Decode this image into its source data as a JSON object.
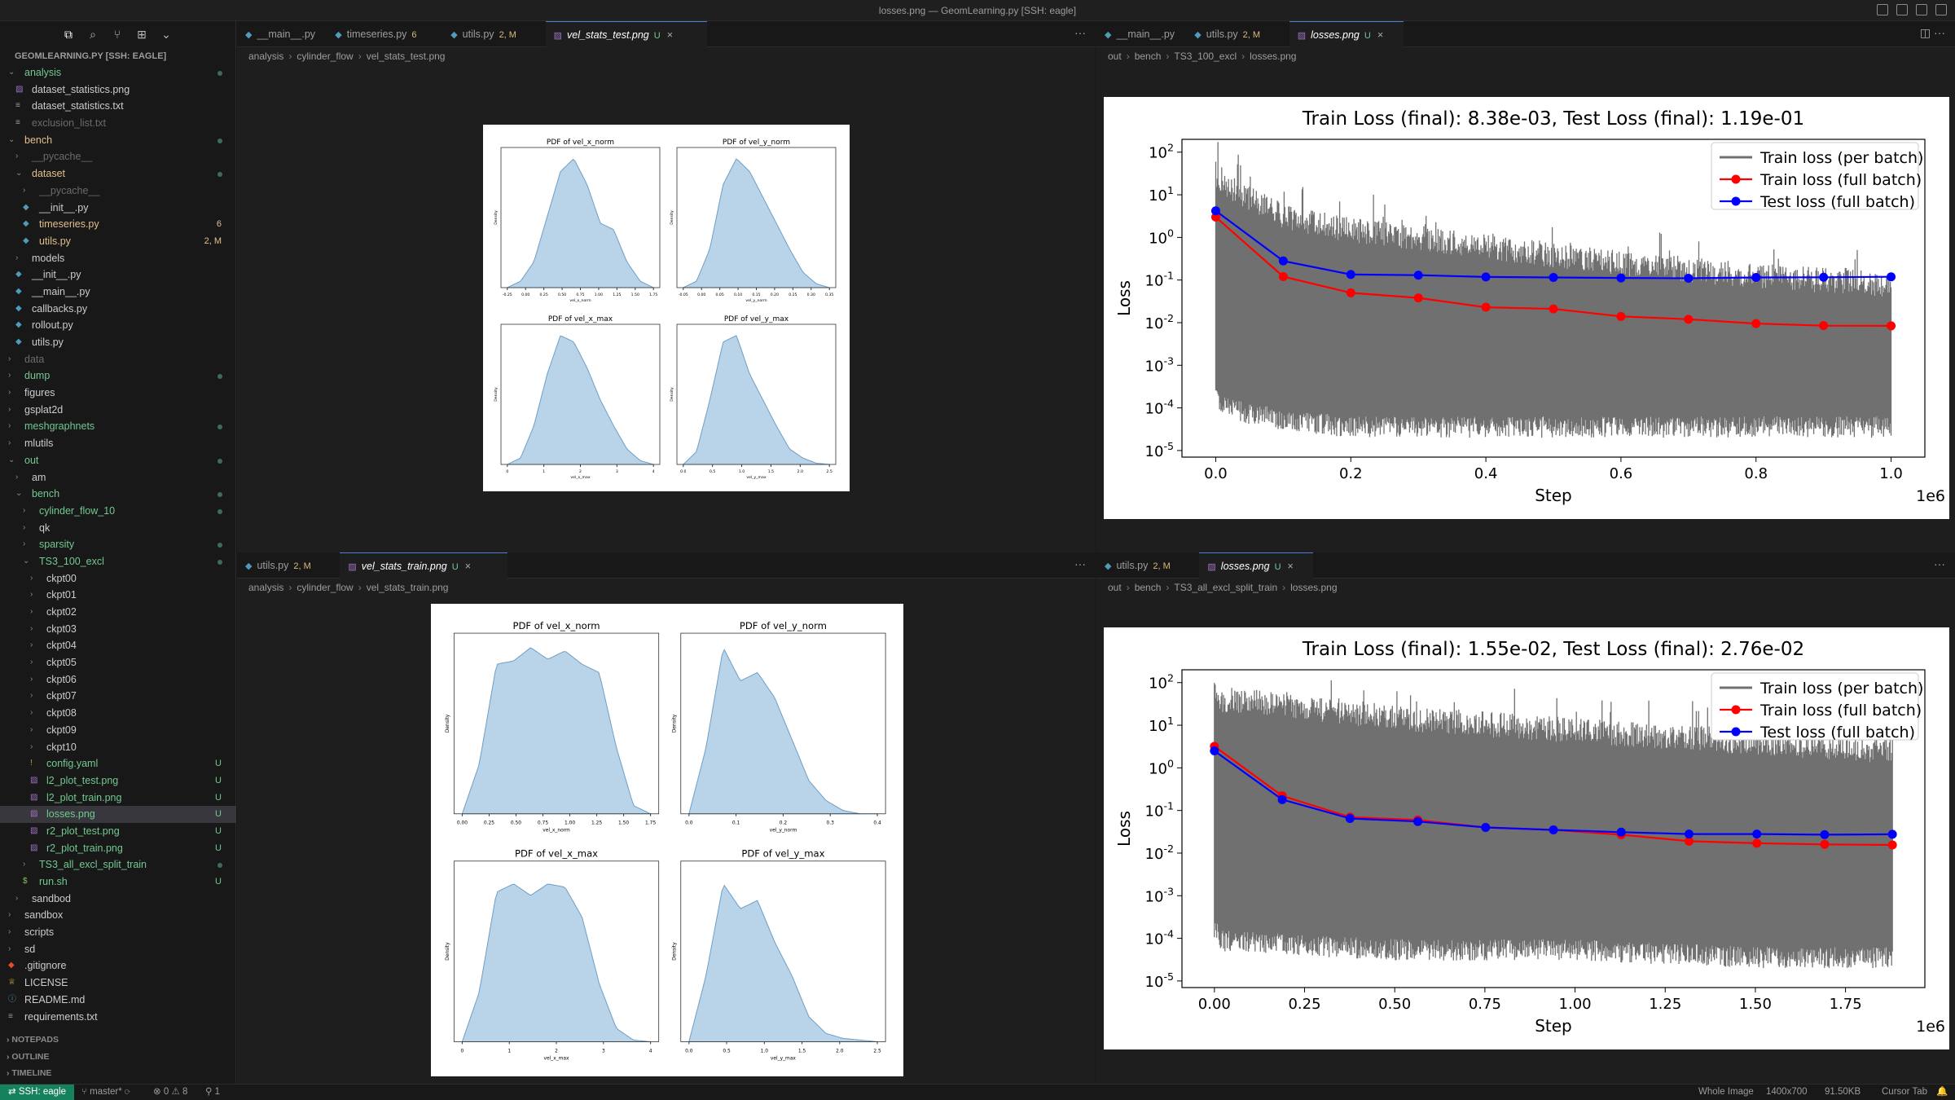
{
  "window": {
    "title": "losses.png — GeomLearning.py [SSH: eagle]"
  },
  "sidebar": {
    "header": "GEOMLEARNING.PY [SSH: EAGLE]",
    "items": [
      {
        "label": "analysis",
        "depth": 0,
        "type": "folder",
        "open": true,
        "color": "#73c991",
        "dot": true
      },
      {
        "label": "dataset_statistics.png",
        "depth": 1,
        "type": "image",
        "color": "#cccccc"
      },
      {
        "label": "dataset_statistics.txt",
        "depth": 1,
        "type": "text",
        "color": "#cccccc"
      },
      {
        "label": "exclusion_list.txt",
        "depth": 1,
        "type": "text",
        "color": "#6b6b6b"
      },
      {
        "label": "bench",
        "depth": 0,
        "type": "folder",
        "open": true,
        "color": "#e2c08d",
        "dot": true
      },
      {
        "label": "__pycache__",
        "depth": 1,
        "type": "folder",
        "color": "#6b6b6b"
      },
      {
        "label": "dataset",
        "depth": 1,
        "type": "folder",
        "open": true,
        "color": "#e2c08d",
        "dot": true
      },
      {
        "label": "__pycache__",
        "depth": 2,
        "type": "folder",
        "color": "#6b6b6b"
      },
      {
        "label": "__init__.py",
        "depth": 2,
        "type": "py",
        "color": "#cccccc"
      },
      {
        "label": "timeseries.py",
        "depth": 2,
        "type": "py",
        "color": "#e2c08d",
        "badge": "6"
      },
      {
        "label": "utils.py",
        "depth": 2,
        "type": "py",
        "color": "#e2c08d",
        "badge": "2, M"
      },
      {
        "label": "models",
        "depth": 1,
        "type": "folder",
        "color": "#cccccc"
      },
      {
        "label": "__init__.py",
        "depth": 1,
        "type": "py",
        "color": "#cccccc"
      },
      {
        "label": "__main__.py",
        "depth": 1,
        "type": "py",
        "color": "#cccccc"
      },
      {
        "label": "callbacks.py",
        "depth": 1,
        "type": "py",
        "color": "#cccccc"
      },
      {
        "label": "rollout.py",
        "depth": 1,
        "type": "py",
        "color": "#cccccc"
      },
      {
        "label": "utils.py",
        "depth": 1,
        "type": "py",
        "color": "#cccccc"
      },
      {
        "label": "data",
        "depth": 0,
        "type": "folder",
        "color": "#6b6b6b"
      },
      {
        "label": "dump",
        "depth": 0,
        "type": "folder",
        "color": "#73c991",
        "dot": true
      },
      {
        "label": "figures",
        "depth": 0,
        "type": "folder",
        "color": "#cccccc"
      },
      {
        "label": "gsplat2d",
        "depth": 0,
        "type": "folder",
        "color": "#cccccc"
      },
      {
        "label": "meshgraphnets",
        "depth": 0,
        "type": "folder",
        "color": "#73c991",
        "dot": true
      },
      {
        "label": "mlutils",
        "depth": 0,
        "type": "folder",
        "color": "#cccccc"
      },
      {
        "label": "out",
        "depth": 0,
        "type": "folder",
        "open": true,
        "color": "#73c991",
        "dot": true
      },
      {
        "label": "am",
        "depth": 1,
        "type": "folder",
        "color": "#cccccc"
      },
      {
        "label": "bench",
        "depth": 1,
        "type": "folder",
        "open": true,
        "color": "#73c991",
        "dot": true
      },
      {
        "label": "cylinder_flow_10",
        "depth": 2,
        "type": "folder",
        "color": "#73c991",
        "dot": true
      },
      {
        "label": "qk",
        "depth": 2,
        "type": "folder",
        "color": "#cccccc"
      },
      {
        "label": "sparsity",
        "depth": 2,
        "type": "folder",
        "color": "#73c991",
        "dot": true
      },
      {
        "label": "TS3_100_excl",
        "depth": 2,
        "type": "folder",
        "open": true,
        "color": "#73c991",
        "dot": true
      },
      {
        "label": "ckpt00",
        "depth": 3,
        "type": "folder",
        "color": "#cccccc"
      },
      {
        "label": "ckpt01",
        "depth": 3,
        "type": "folder",
        "color": "#cccccc"
      },
      {
        "label": "ckpt02",
        "depth": 3,
        "type": "folder",
        "color": "#cccccc"
      },
      {
        "label": "ckpt03",
        "depth": 3,
        "type": "folder",
        "color": "#cccccc"
      },
      {
        "label": "ckpt04",
        "depth": 3,
        "type": "folder",
        "color": "#cccccc"
      },
      {
        "label": "ckpt05",
        "depth": 3,
        "type": "folder",
        "color": "#cccccc"
      },
      {
        "label": "ckpt06",
        "depth": 3,
        "type": "folder",
        "color": "#cccccc"
      },
      {
        "label": "ckpt07",
        "depth": 3,
        "type": "folder",
        "color": "#cccccc"
      },
      {
        "label": "ckpt08",
        "depth": 3,
        "type": "folder",
        "color": "#cccccc"
      },
      {
        "label": "ckpt09",
        "depth": 3,
        "type": "folder",
        "color": "#cccccc"
      },
      {
        "label": "ckpt10",
        "depth": 3,
        "type": "folder",
        "color": "#cccccc"
      },
      {
        "label": "config.yaml",
        "depth": 3,
        "type": "yaml",
        "color": "#73c991",
        "badge": "U"
      },
      {
        "label": "l2_plot_test.png",
        "depth": 3,
        "type": "image",
        "color": "#73c991",
        "badge": "U"
      },
      {
        "label": "l2_plot_train.png",
        "depth": 3,
        "type": "image",
        "color": "#73c991",
        "badge": "U"
      },
      {
        "label": "losses.png",
        "depth": 3,
        "type": "image",
        "color": "#73c991",
        "badge": "U",
        "selected": true
      },
      {
        "label": "r2_plot_test.png",
        "depth": 3,
        "type": "image",
        "color": "#73c991",
        "badge": "U"
      },
      {
        "label": "r2_plot_train.png",
        "depth": 3,
        "type": "image",
        "color": "#73c991",
        "badge": "U"
      },
      {
        "label": "TS3_all_excl_split_train",
        "depth": 2,
        "type": "folder",
        "color": "#73c991",
        "dot": true
      },
      {
        "label": "run.sh",
        "depth": 2,
        "type": "shell",
        "color": "#73c991",
        "badge": "U"
      },
      {
        "label": "sandbod",
        "depth": 1,
        "type": "folder",
        "color": "#cccccc"
      },
      {
        "label": "sandbox",
        "depth": 0,
        "type": "folder",
        "color": "#cccccc"
      },
      {
        "label": "scripts",
        "depth": 0,
        "type": "folder",
        "color": "#cccccc"
      },
      {
        "label": "sd",
        "depth": 0,
        "type": "folder",
        "color": "#cccccc"
      },
      {
        "label": ".gitignore",
        "depth": 0,
        "type": "git",
        "color": "#cccccc"
      },
      {
        "label": "LICENSE",
        "depth": 0,
        "type": "license",
        "color": "#cccccc"
      },
      {
        "label": "README.md",
        "depth": 0,
        "type": "md",
        "color": "#cccccc"
      },
      {
        "label": "requirements.txt",
        "depth": 0,
        "type": "text",
        "color": "#cccccc"
      }
    ],
    "sections": [
      "NOTEPADS",
      "OUTLINE",
      "TIMELINE"
    ]
  },
  "panes": {
    "top_left": {
      "tabs": [
        {
          "label": "__main__.py",
          "mod": ""
        },
        {
          "label": "timeseries.py",
          "mod": "6"
        },
        {
          "label": "utils.py",
          "mod": "2, M"
        },
        {
          "label": "vel_stats_test.png",
          "mod": "U",
          "active": true
        }
      ],
      "breadcrumb": [
        "analysis",
        "cylinder_flow",
        "vel_stats_test.png"
      ]
    },
    "top_right": {
      "tabs": [
        {
          "label": "__main__.py",
          "mod": ""
        },
        {
          "label": "utils.py",
          "mod": "2, M"
        },
        {
          "label": "losses.png",
          "mod": "U",
          "active": true
        }
      ],
      "breadcrumb": [
        "out",
        "bench",
        "TS3_100_excl",
        "losses.png"
      ]
    },
    "bottom_left": {
      "tabs": [
        {
          "label": "utils.py",
          "mod": "2, M"
        },
        {
          "label": "vel_stats_train.png",
          "mod": "U",
          "active": true
        }
      ],
      "breadcrumb": [
        "analysis",
        "cylinder_flow",
        "vel_stats_train.png"
      ]
    },
    "bottom_right": {
      "tabs": [
        {
          "label": "utils.py",
          "mod": "2, M"
        },
        {
          "label": "losses.png",
          "mod": "U",
          "active": true
        }
      ],
      "breadcrumb": [
        "out",
        "bench",
        "TS3_all_excl_split_train",
        "losses.png"
      ]
    }
  },
  "statusbar": {
    "remote": "SSH: eagle",
    "branch": "master*",
    "errors": "0",
    "warnings": "8",
    "ports": "1",
    "right": [
      "Whole Image",
      "1400x700",
      "91.50KB",
      "Cursor Tab"
    ]
  },
  "chart_data": [
    {
      "type": "line",
      "title": "Train Loss (final): 8.38e-03, Test Loss (final): 1.19e-01",
      "xlabel": "Step",
      "ylabel": "Loss",
      "x_scale_label": "1e6",
      "yscale": "log",
      "xlim": [
        -0.05,
        1.05
      ],
      "ylim": [
        7e-06,
        200
      ],
      "xticks": [
        "0.0",
        "0.2",
        "0.4",
        "0.6",
        "0.8",
        "1.0"
      ],
      "xtick_values": [
        0,
        0.2,
        0.4,
        0.6,
        0.8,
        1.0
      ],
      "yticks": [
        "10^2",
        "10^1",
        "10^0",
        "10^-1",
        "10^-2",
        "10^-3",
        "10^-4",
        "10^-5"
      ],
      "ytick_values": [
        100,
        10,
        1,
        0.1,
        0.01,
        0.001,
        0.0001,
        1e-05
      ],
      "legend": "top-right",
      "series": [
        {
          "name": "Train loss (per batch)",
          "color": "#707070",
          "kind": "band",
          "x": [
            0,
            0.02,
            0.1,
            0.2,
            0.4,
            0.6,
            0.8,
            1.0
          ],
          "upper": [
            60,
            30,
            6,
            3,
            1.2,
            0.5,
            0.25,
            0.15
          ],
          "lower": [
            0.0001,
            5e-05,
            3e-05,
            2e-05,
            2e-05,
            2e-05,
            2e-05,
            2e-05
          ]
        },
        {
          "name": "Train loss (full batch)",
          "color": "#ff0000",
          "x": [
            0,
            0.1,
            0.2,
            0.3,
            0.4,
            0.5,
            0.6,
            0.7,
            0.8,
            0.9,
            1.0
          ],
          "y": [
            3.0,
            0.12,
            0.05,
            0.038,
            0.023,
            0.021,
            0.014,
            0.012,
            0.0095,
            0.0085,
            0.0084
          ]
        },
        {
          "name": "Test loss (full batch)",
          "color": "#0000ff",
          "x": [
            0,
            0.1,
            0.2,
            0.3,
            0.4,
            0.5,
            0.6,
            0.7,
            0.8,
            0.9,
            1.0
          ],
          "y": [
            4.2,
            0.28,
            0.135,
            0.13,
            0.118,
            0.115,
            0.112,
            0.11,
            0.115,
            0.116,
            0.119
          ]
        }
      ]
    },
    {
      "type": "line",
      "title": "Train Loss (final): 1.55e-02, Test Loss (final): 2.76e-02",
      "xlabel": "Step",
      "ylabel": "Loss",
      "x_scale_label": "1e6",
      "yscale": "log",
      "xlim": [
        -0.09,
        1.97
      ],
      "ylim": [
        7e-06,
        200
      ],
      "xticks": [
        "0.00",
        "0.25",
        "0.50",
        "0.75",
        "1.00",
        "1.25",
        "1.50",
        "1.75"
      ],
      "xtick_values": [
        0,
        0.25,
        0.5,
        0.75,
        1.0,
        1.25,
        1.5,
        1.75
      ],
      "yticks": [
        "10^2",
        "10^1",
        "10^0",
        "10^-1",
        "10^-2",
        "10^-3",
        "10^-4",
        "10^-5"
      ],
      "ytick_values": [
        100,
        10,
        1,
        0.1,
        0.01,
        0.001,
        0.0001,
        1e-05
      ],
      "legend": "top-right",
      "series": [
        {
          "name": "Train loss (per batch)",
          "color": "#707070",
          "kind": "band",
          "x": [
            0,
            0.02,
            0.2,
            0.5,
            1.0,
            1.5,
            1.88
          ],
          "upper": [
            100,
            80,
            60,
            30,
            15,
            8,
            5
          ],
          "lower": [
            0.0001,
            5e-05,
            4e-05,
            3e-05,
            3e-05,
            2e-05,
            2e-05
          ]
        },
        {
          "name": "Train loss (full batch)",
          "color": "#ff0000",
          "x": [
            0,
            0.188,
            0.376,
            0.564,
            0.752,
            0.94,
            1.128,
            1.316,
            1.504,
            1.692,
            1.88
          ],
          "y": [
            3.2,
            0.22,
            0.07,
            0.06,
            0.04,
            0.035,
            0.027,
            0.019,
            0.017,
            0.016,
            0.0155
          ]
        },
        {
          "name": "Test loss (full batch)",
          "color": "#0000ff",
          "x": [
            0,
            0.188,
            0.376,
            0.564,
            0.752,
            0.94,
            1.128,
            1.316,
            1.504,
            1.692,
            1.88
          ],
          "y": [
            2.5,
            0.18,
            0.065,
            0.055,
            0.04,
            0.035,
            0.031,
            0.028,
            0.028,
            0.027,
            0.0276
          ]
        }
      ]
    }
  ],
  "kde": {
    "test": [
      {
        "title": "PDF of vel_x_norm",
        "xlabel": "vel_x_norm",
        "ylabel": "Density",
        "xticks": [
          "-0.25",
          "0.00",
          "0.25",
          "0.50",
          "0.75",
          "1.00",
          "1.25",
          "1.50",
          "1.75"
        ],
        "shape": [
          0,
          0.05,
          0.2,
          0.55,
          0.9,
          1.0,
          0.8,
          0.5,
          0.45,
          0.2,
          0.05,
          0
        ]
      },
      {
        "title": "PDF of vel_y_norm",
        "xlabel": "vel_y_norm",
        "ylabel": "Density",
        "xticks": [
          "-0.05",
          "0.00",
          "0.05",
          "0.10",
          "0.15",
          "0.20",
          "0.25",
          "0.30",
          "0.35"
        ],
        "shape": [
          0,
          0.05,
          0.3,
          0.8,
          1.0,
          0.9,
          0.7,
          0.5,
          0.3,
          0.12,
          0.03,
          0
        ]
      },
      {
        "title": "PDF of vel_x_max",
        "xlabel": "vel_x_max",
        "ylabel": "Density",
        "xticks": [
          "0",
          "1",
          "2",
          "3",
          "4"
        ],
        "shape": [
          0,
          0.05,
          0.3,
          0.7,
          1.0,
          0.95,
          0.75,
          0.5,
          0.3,
          0.12,
          0.03,
          0
        ]
      },
      {
        "title": "PDF of vel_y_max",
        "xlabel": "vel_y_max",
        "ylabel": "Density",
        "xticks": [
          "0.0",
          "0.5",
          "1.0",
          "1.5",
          "2.0",
          "2.5"
        ],
        "shape": [
          0,
          0.1,
          0.5,
          0.95,
          1.0,
          0.7,
          0.5,
          0.3,
          0.12,
          0.05,
          0.01,
          0
        ]
      }
    ],
    "train": [
      {
        "title": "PDF of vel_x_norm",
        "xlabel": "vel_x_norm",
        "ylabel": "Density",
        "xticks": [
          "0.00",
          "0.25",
          "0.50",
          "0.75",
          "1.00",
          "1.25",
          "1.50",
          "1.75"
        ],
        "shape": [
          0,
          0.3,
          0.9,
          0.92,
          1.0,
          0.93,
          0.98,
          0.9,
          0.85,
          0.4,
          0.05,
          0
        ]
      },
      {
        "title": "PDF of vel_y_norm",
        "xlabel": "vel_y_norm",
        "ylabel": "Density",
        "xticks": [
          "0.0",
          "0.1",
          "0.2",
          "0.3",
          "0.4"
        ],
        "shape": [
          0,
          0.4,
          1.0,
          0.8,
          0.85,
          0.7,
          0.45,
          0.2,
          0.08,
          0.02,
          0,
          0
        ]
      },
      {
        "title": "PDF of vel_x_max",
        "xlabel": "vel_x_max",
        "ylabel": "Density",
        "xticks": [
          "0",
          "1",
          "2",
          "3",
          "4"
        ],
        "shape": [
          0,
          0.3,
          0.9,
          0.95,
          0.88,
          0.95,
          0.93,
          0.75,
          0.35,
          0.08,
          0.01,
          0
        ]
      },
      {
        "title": "PDF of vel_y_max",
        "xlabel": "vel_y_max",
        "ylabel": "Density",
        "xticks": [
          "0.0",
          "0.5",
          "1.0",
          "1.5",
          "2.0",
          "2.5"
        ],
        "shape": [
          0,
          0.4,
          0.95,
          0.8,
          0.85,
          0.6,
          0.4,
          0.15,
          0.05,
          0.02,
          0.01,
          0
        ]
      }
    ]
  }
}
